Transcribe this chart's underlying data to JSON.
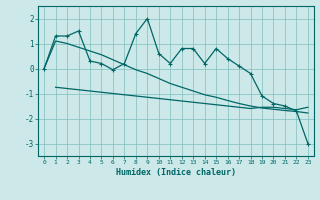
{
  "xlabel": "Humidex (Indice chaleur)",
  "bg_color": "#cce8e8",
  "grid_color": "#7fbfbf",
  "line_color": "#006666",
  "xlim": [
    -0.5,
    23.5
  ],
  "ylim": [
    -3.5,
    2.5
  ],
  "yticks": [
    -3,
    -2,
    -1,
    0,
    1,
    2
  ],
  "xticks": [
    0,
    1,
    2,
    3,
    4,
    5,
    6,
    7,
    8,
    9,
    10,
    11,
    12,
    13,
    14,
    15,
    16,
    17,
    18,
    19,
    20,
    21,
    22,
    23
  ],
  "series1_x": [
    0,
    1,
    2,
    3,
    4,
    5,
    6,
    7,
    8,
    9,
    10,
    11,
    12,
    13,
    14,
    15,
    16,
    17,
    18,
    19,
    20,
    21,
    22,
    23
  ],
  "series1_y": [
    0.0,
    1.3,
    1.3,
    1.5,
    0.3,
    0.2,
    -0.05,
    0.2,
    1.4,
    2.0,
    0.6,
    0.2,
    0.8,
    0.8,
    0.2,
    0.8,
    0.4,
    0.1,
    -0.2,
    -1.1,
    -1.4,
    -1.5,
    -1.7,
    -3.0
  ],
  "series2_x": [
    1,
    2,
    3,
    4,
    5,
    6,
    7,
    8,
    9,
    10,
    11,
    12,
    13,
    14,
    15,
    16,
    17,
    18,
    19,
    20,
    21,
    22,
    23
  ],
  "series2_y": [
    -0.75,
    -0.8,
    -0.85,
    -0.9,
    -0.95,
    -1.0,
    -1.05,
    -1.1,
    -1.15,
    -1.2,
    -1.25,
    -1.3,
    -1.35,
    -1.4,
    -1.45,
    -1.5,
    -1.55,
    -1.6,
    -1.55,
    -1.55,
    -1.6,
    -1.65,
    -1.55
  ],
  "series3_x": [
    0,
    1,
    2,
    3,
    4,
    5,
    6,
    7,
    8,
    9,
    10,
    11,
    12,
    13,
    14,
    15,
    16,
    17,
    18,
    19,
    20,
    21,
    22,
    23
  ],
  "series3_y": [
    0.0,
    1.1,
    1.0,
    0.85,
    0.7,
    0.55,
    0.35,
    0.15,
    -0.05,
    -0.2,
    -0.4,
    -0.6,
    -0.75,
    -0.9,
    -1.05,
    -1.15,
    -1.28,
    -1.4,
    -1.5,
    -1.58,
    -1.63,
    -1.68,
    -1.72,
    -1.78
  ]
}
